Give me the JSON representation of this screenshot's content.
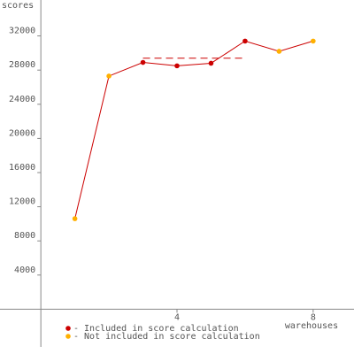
{
  "chart_data": {
    "type": "line",
    "y_label": "scores",
    "x_label": "warehouses",
    "x": [
      1,
      2,
      3,
      4,
      5,
      6,
      7,
      8
    ],
    "series": [
      {
        "color": "#cc0000",
        "values": [
          10600,
          27300,
          28900,
          28500,
          28800,
          31400,
          30200,
          31400
        ],
        "point_colors": [
          "#ffb000",
          "#ffb000",
          "#cc0000",
          "#cc0000",
          "#cc0000",
          "#cc0000",
          "#ffb000",
          "#ffb000"
        ]
      }
    ],
    "score_line": {
      "value": 29400,
      "x": [
        3,
        6
      ],
      "color": "#cc0000"
    },
    "xlim": [
      -1.2,
      9.2
    ],
    "ylim": [
      -4000,
      36000
    ],
    "xticks": [
      4,
      8
    ],
    "yticks": [
      4000,
      8000,
      12000,
      16000,
      20000,
      24000,
      28000,
      32000
    ],
    "legend": [
      {
        "label": "- Included in score calculation",
        "color": "#cc0000"
      },
      {
        "label": "- Not included in score calculation",
        "color": "#ffb000"
      }
    ]
  }
}
